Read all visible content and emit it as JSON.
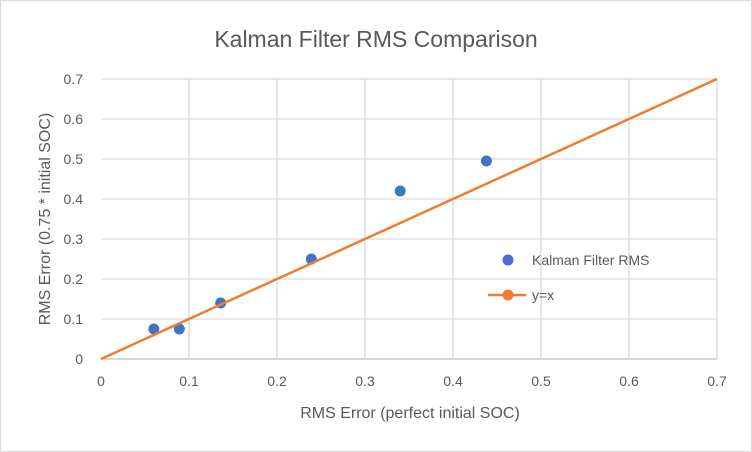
{
  "chart_data": {
    "type": "scatter",
    "title": "Kalman Filter RMS Comparison",
    "xlabel": "RMS Error (perfect initial SOC)",
    "ylabel": "RMS Error (0.75 * initial SOC)",
    "xlim": [
      0,
      0.7
    ],
    "ylim": [
      0,
      0.7
    ],
    "xticks": [
      "0",
      "0.1",
      "0.2",
      "0.3",
      "0.4",
      "0.5",
      "0.6",
      "0.7"
    ],
    "yticks": [
      "0",
      "0.1",
      "0.2",
      "0.3",
      "0.4",
      "0.5",
      "0.6",
      "0.7"
    ],
    "grid": true,
    "legend_position": "right",
    "series": [
      {
        "name": "Kalman Filter RMS",
        "kind": "scatter",
        "color": "#4472C4",
        "x": [
          0.06,
          0.089,
          0.136,
          0.239,
          0.34,
          0.438
        ],
        "y": [
          0.075,
          0.075,
          0.14,
          0.25,
          0.42,
          0.495
        ]
      },
      {
        "name": "y=x",
        "kind": "line",
        "color": "#ED7D31",
        "x": [
          0,
          0.7
        ],
        "y": [
          0,
          0.7
        ]
      }
    ]
  }
}
